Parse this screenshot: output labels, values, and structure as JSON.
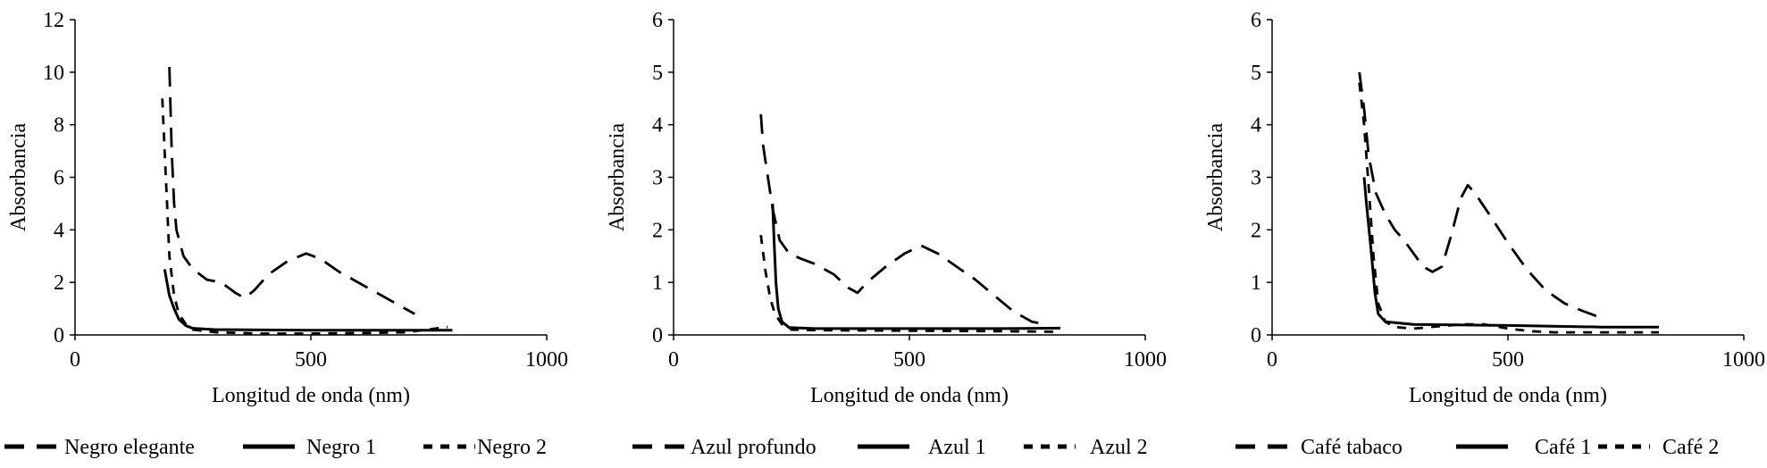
{
  "chart_data": [
    {
      "type": "line",
      "title": "",
      "xlabel": "Longitud de onda (nm)",
      "ylabel": "Absorbancia",
      "xlim": [
        0,
        1000
      ],
      "ylim": [
        0,
        12
      ],
      "xticks": [
        "0",
        "500",
        "1000"
      ],
      "yticks": [
        "0",
        "2",
        "4",
        "6",
        "8",
        "10",
        "12"
      ],
      "grid": false,
      "legend": "bottom",
      "series": [
        {
          "name": "Negro elegante",
          "style": "long-dash",
          "points": [
            [
              200,
              10.2
            ],
            [
              205,
              7
            ],
            [
              210,
              5
            ],
            [
              215,
              4
            ],
            [
              230,
              3
            ],
            [
              250,
              2.5
            ],
            [
              280,
              2.1
            ],
            [
              310,
              2.0
            ],
            [
              340,
              1.6
            ],
            [
              360,
              1.4
            ],
            [
              380,
              1.7
            ],
            [
              410,
              2.3
            ],
            [
              450,
              2.8
            ],
            [
              490,
              3.1
            ],
            [
              520,
              2.9
            ],
            [
              560,
              2.4
            ],
            [
              600,
              2.0
            ],
            [
              650,
              1.5
            ],
            [
              700,
              1.0
            ],
            [
              720,
              0.8
            ]
          ]
        },
        {
          "name": "Negro 1",
          "style": "solid",
          "points": [
            [
              190,
              2.5
            ],
            [
              200,
              1.5
            ],
            [
              210,
              1.0
            ],
            [
              220,
              0.6
            ],
            [
              235,
              0.35
            ],
            [
              250,
              0.25
            ],
            [
              300,
              0.2
            ],
            [
              500,
              0.18
            ],
            [
              700,
              0.18
            ],
            [
              800,
              0.18
            ]
          ]
        },
        {
          "name": "Negro 2",
          "style": "short-dash",
          "points": [
            [
              185,
              9.0
            ],
            [
              190,
              7
            ],
            [
              195,
              5
            ],
            [
              200,
              3
            ],
            [
              210,
              1.5
            ],
            [
              220,
              0.8
            ],
            [
              235,
              0.4
            ],
            [
              250,
              0.2
            ],
            [
              300,
              0.1
            ],
            [
              400,
              0.05
            ],
            [
              500,
              0.05
            ],
            [
              600,
              0.07
            ],
            [
              700,
              0.1
            ],
            [
              790,
              0.3
            ]
          ]
        }
      ]
    },
    {
      "type": "line",
      "title": "",
      "xlabel": "Longitud de onda (nm)",
      "ylabel": "Absorbancia",
      "xlim": [
        0,
        1000
      ],
      "ylim": [
        0,
        6
      ],
      "xticks": [
        "0",
        "500",
        "1000"
      ],
      "yticks": [
        "0",
        "1",
        "2",
        "3",
        "4",
        "5",
        "6"
      ],
      "grid": false,
      "legend": "bottom",
      "series": [
        {
          "name": "Azul profundo",
          "style": "long-dash",
          "points": [
            [
              185,
              4.2
            ],
            [
              190,
              3.6
            ],
            [
              200,
              3.0
            ],
            [
              210,
              2.4
            ],
            [
              225,
              1.8
            ],
            [
              245,
              1.55
            ],
            [
              270,
              1.45
            ],
            [
              300,
              1.35
            ],
            [
              340,
              1.15
            ],
            [
              370,
              0.9
            ],
            [
              390,
              0.8
            ],
            [
              410,
              1.0
            ],
            [
              450,
              1.3
            ],
            [
              490,
              1.55
            ],
            [
              525,
              1.7
            ],
            [
              560,
              1.55
            ],
            [
              600,
              1.3
            ],
            [
              640,
              1.05
            ],
            [
              680,
              0.75
            ],
            [
              720,
              0.45
            ],
            [
              760,
              0.25
            ],
            [
              790,
              0.2
            ]
          ]
        },
        {
          "name": "Azul 1",
          "style": "solid",
          "points": [
            [
              210,
              2.5
            ],
            [
              213,
              1.8
            ],
            [
              217,
              1.0
            ],
            [
              222,
              0.5
            ],
            [
              230,
              0.25
            ],
            [
              245,
              0.14
            ],
            [
              300,
              0.12
            ],
            [
              500,
              0.12
            ],
            [
              700,
              0.12
            ],
            [
              820,
              0.13
            ]
          ]
        },
        {
          "name": "Azul 2",
          "style": "short-dash",
          "points": [
            [
              185,
              1.9
            ],
            [
              195,
              1.2
            ],
            [
              205,
              0.7
            ],
            [
              215,
              0.4
            ],
            [
              230,
              0.2
            ],
            [
              250,
              0.1
            ],
            [
              300,
              0.09
            ],
            [
              500,
              0.08
            ],
            [
              700,
              0.07
            ],
            [
              820,
              0.06
            ]
          ]
        }
      ]
    },
    {
      "type": "line",
      "title": "",
      "xlabel": "Longitud de onda (nm)",
      "ylabel": "Absorbancia",
      "xlim": [
        0,
        1000
      ],
      "ylim": [
        0,
        6
      ],
      "xticks": [
        "0",
        "500",
        "1000"
      ],
      "yticks": [
        "0",
        "1",
        "2",
        "3",
        "4",
        "5",
        "6"
      ],
      "grid": false,
      "legend": "bottom",
      "series": [
        {
          "name": "Café tabaco",
          "style": "long-dash",
          "points": [
            [
              185,
              5.0
            ],
            [
              195,
              4.3
            ],
            [
              205,
              3.4
            ],
            [
              220,
              2.7
            ],
            [
              240,
              2.3
            ],
            [
              260,
              2.0
            ],
            [
              280,
              1.8
            ],
            [
              300,
              1.55
            ],
            [
              320,
              1.3
            ],
            [
              340,
              1.2
            ],
            [
              360,
              1.3
            ],
            [
              380,
              1.9
            ],
            [
              400,
              2.6
            ],
            [
              415,
              2.85
            ],
            [
              430,
              2.7
            ],
            [
              460,
              2.3
            ],
            [
              500,
              1.75
            ],
            [
              540,
              1.25
            ],
            [
              580,
              0.85
            ],
            [
              620,
              0.6
            ],
            [
              660,
              0.45
            ],
            [
              690,
              0.35
            ]
          ]
        },
        {
          "name": "Café 1",
          "style": "solid",
          "points": [
            [
              195,
              3.0
            ],
            [
              200,
              2.5
            ],
            [
              210,
              1.6
            ],
            [
              218,
              0.8
            ],
            [
              225,
              0.4
            ],
            [
              240,
              0.25
            ],
            [
              300,
              0.2
            ],
            [
              500,
              0.18
            ],
            [
              700,
              0.15
            ],
            [
              820,
              0.15
            ]
          ]
        },
        {
          "name": "Café 2",
          "style": "short-dash",
          "points": [
            [
              185,
              4.8
            ],
            [
              195,
              4.0
            ],
            [
              205,
              2.8
            ],
            [
              215,
              1.5
            ],
            [
              225,
              0.6
            ],
            [
              240,
              0.25
            ],
            [
              260,
              0.15
            ],
            [
              300,
              0.12
            ],
            [
              400,
              0.2
            ],
            [
              450,
              0.2
            ],
            [
              500,
              0.12
            ],
            [
              550,
              0.07
            ],
            [
              600,
              0.05
            ],
            [
              700,
              0.05
            ],
            [
              820,
              0.05
            ]
          ]
        }
      ]
    }
  ]
}
